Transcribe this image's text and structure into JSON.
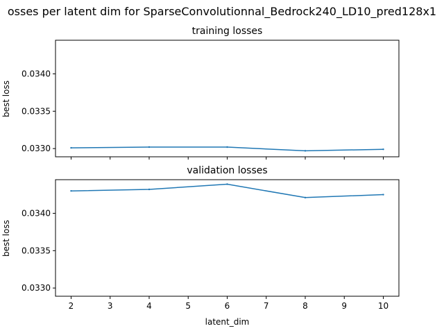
{
  "suptitle": "osses per latent dim for SparseConvolutionnal_Bedrock240_LD10_pred128x1",
  "colors": {
    "line": "#1f77b4",
    "axes": "#000000",
    "background": "#ffffff"
  },
  "chart_data": [
    {
      "type": "line",
      "title": "training losses",
      "xlabel": "",
      "ylabel": "best loss",
      "x": [
        2,
        4,
        6,
        8,
        10
      ],
      "series": [
        {
          "values": [
            0.03301,
            0.03302,
            0.03302,
            0.03297,
            0.03299
          ]
        }
      ],
      "xlim": [
        1.6,
        10.4
      ],
      "ylim": [
        0.03289,
        0.03445
      ],
      "xticks": [
        2,
        3,
        4,
        5,
        6,
        7,
        8,
        9,
        10
      ],
      "xticklabels_visible": false,
      "yticks": [
        0.033,
        0.0335,
        0.034
      ],
      "yticklabels": [
        "0.0330",
        "0.0335",
        "0.0340"
      ],
      "grid": false,
      "legend": "none"
    },
    {
      "type": "line",
      "title": "validation losses",
      "xlabel": "latent_dim",
      "ylabel": "best loss",
      "x": [
        2,
        4,
        6,
        8,
        10
      ],
      "series": [
        {
          "values": [
            0.0343,
            0.03432,
            0.03439,
            0.03421,
            0.03425
          ]
        }
      ],
      "xlim": [
        1.6,
        10.4
      ],
      "ylim": [
        0.03289,
        0.03445
      ],
      "xticks": [
        2,
        3,
        4,
        5,
        6,
        7,
        8,
        9,
        10
      ],
      "xticklabels": [
        "2",
        "3",
        "4",
        "5",
        "6",
        "7",
        "8",
        "9",
        "10"
      ],
      "xticklabels_visible": true,
      "yticks": [
        0.033,
        0.0335,
        0.034
      ],
      "yticklabels": [
        "0.0330",
        "0.0335",
        "0.0340"
      ],
      "grid": false,
      "legend": "none"
    }
  ]
}
